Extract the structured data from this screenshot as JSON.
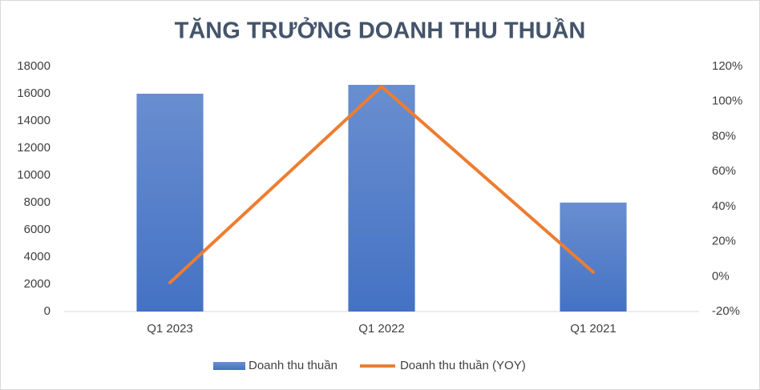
{
  "chart_data": {
    "type": "bar_line",
    "title": "TĂNG TRƯỞNG DOANH THU THUẦN",
    "categories": [
      "Q1 2023",
      "Q1 2022",
      "Q1 2021"
    ],
    "series": [
      {
        "name": "Doanh thu thuần",
        "type": "bar",
        "color": "#4472c4",
        "values": [
          16000,
          16650,
          8000
        ]
      },
      {
        "name": "Doanh thu thuần (YOY)",
        "type": "line",
        "axis": "y2",
        "color": "#ed7d31",
        "values": [
          -3.5,
          108.5,
          2.5
        ]
      }
    ],
    "ylim": [
      0,
      18000
    ],
    "yticks": [
      0,
      2000,
      4000,
      6000,
      8000,
      10000,
      12000,
      14000,
      16000,
      18000
    ],
    "y2lim": [
      -20,
      120
    ],
    "y2ticks": [
      {
        "value": -20,
        "label": "-20%"
      },
      {
        "value": 0,
        "label": "0%"
      },
      {
        "value": 20,
        "label": "20%"
      },
      {
        "value": 40,
        "label": "40%"
      },
      {
        "value": 60,
        "label": "60%"
      },
      {
        "value": 80,
        "label": "80%"
      },
      {
        "value": 100,
        "label": "100%"
      },
      {
        "value": 120,
        "label": "120%"
      }
    ],
    "grid": false,
    "legend": "bottom"
  }
}
